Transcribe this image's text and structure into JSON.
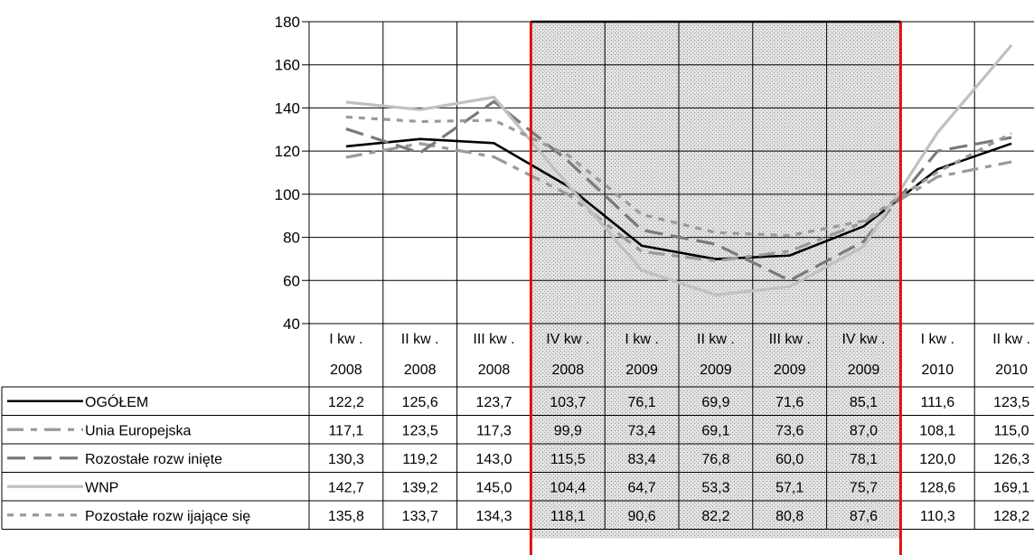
{
  "chart_data": {
    "type": "line",
    "categories": [
      [
        "I kw .",
        "2008"
      ],
      [
        "II kw .",
        "2008"
      ],
      [
        "III kw .",
        "2008"
      ],
      [
        "IV kw .",
        "2008"
      ],
      [
        "I kw .",
        "2009"
      ],
      [
        "II kw .",
        "2009"
      ],
      [
        "III kw .",
        "2009"
      ],
      [
        "IV kw .",
        "2009"
      ],
      [
        "I kw .",
        "2010"
      ],
      [
        "II kw .",
        "2010"
      ]
    ],
    "ylim": [
      40,
      180
    ],
    "yticks": [
      40,
      60,
      80,
      100,
      120,
      140,
      160,
      180
    ],
    "highlight_range": [
      3,
      7
    ],
    "colors": {
      "highlight_border": "#e01010",
      "grid": "#000000"
    },
    "series": [
      {
        "name": "OGÓŁEM",
        "values": [
          122.2,
          125.6,
          123.7,
          103.7,
          76.1,
          69.9,
          71.6,
          85.1,
          111.6,
          123.5
        ],
        "labels": [
          "122,2",
          "125,6",
          "123,7",
          "103,7",
          "76,1",
          "69,9",
          "71,6",
          "85,1",
          "111,6",
          "123,5"
        ],
        "color": "#000000",
        "dash": "solid"
      },
      {
        "name": "Unia Europejska",
        "values": [
          117.1,
          123.5,
          117.3,
          99.9,
          73.4,
          69.1,
          73.6,
          87.0,
          108.1,
          115.0
        ],
        "labels": [
          "117,1",
          "123,5",
          "117,3",
          "99,9",
          "73,4",
          "69,1",
          "73,6",
          "87,0",
          "108,1",
          "115,0"
        ],
        "color": "#9a9a9a",
        "dash": "long-short"
      },
      {
        "name": "Rozostałe rozw inięte",
        "values": [
          130.3,
          119.2,
          143.0,
          115.5,
          83.4,
          76.8,
          60.0,
          78.1,
          120.0,
          126.3
        ],
        "labels": [
          "130,3",
          "119,2",
          "143,0",
          "115,5",
          "83,4",
          "76,8",
          "60,0",
          "78,1",
          "120,0",
          "126,3"
        ],
        "color": "#7a7a7a",
        "dash": "long"
      },
      {
        "name": "WNP",
        "values": [
          142.7,
          139.2,
          145.0,
          104.4,
          64.7,
          53.3,
          57.1,
          75.7,
          128.6,
          169.1
        ],
        "labels": [
          "142,7",
          "139,2",
          "145,0",
          "104,4",
          "64,7",
          "53,3",
          "57,1",
          "75,7",
          "128,6",
          "169,1"
        ],
        "color": "#c0c0c0",
        "dash": "solid"
      },
      {
        "name": "Pozostałe rozw ijające się",
        "values": [
          135.8,
          133.7,
          134.3,
          118.1,
          90.6,
          82.2,
          80.8,
          87.6,
          110.3,
          128.2
        ],
        "labels": [
          "135,8",
          "133,7",
          "134,3",
          "118,1",
          "90,6",
          "82,2",
          "80,8",
          "87,6",
          "110,3",
          "128,2"
        ],
        "color": "#9a9a9a",
        "dash": "short"
      }
    ]
  }
}
